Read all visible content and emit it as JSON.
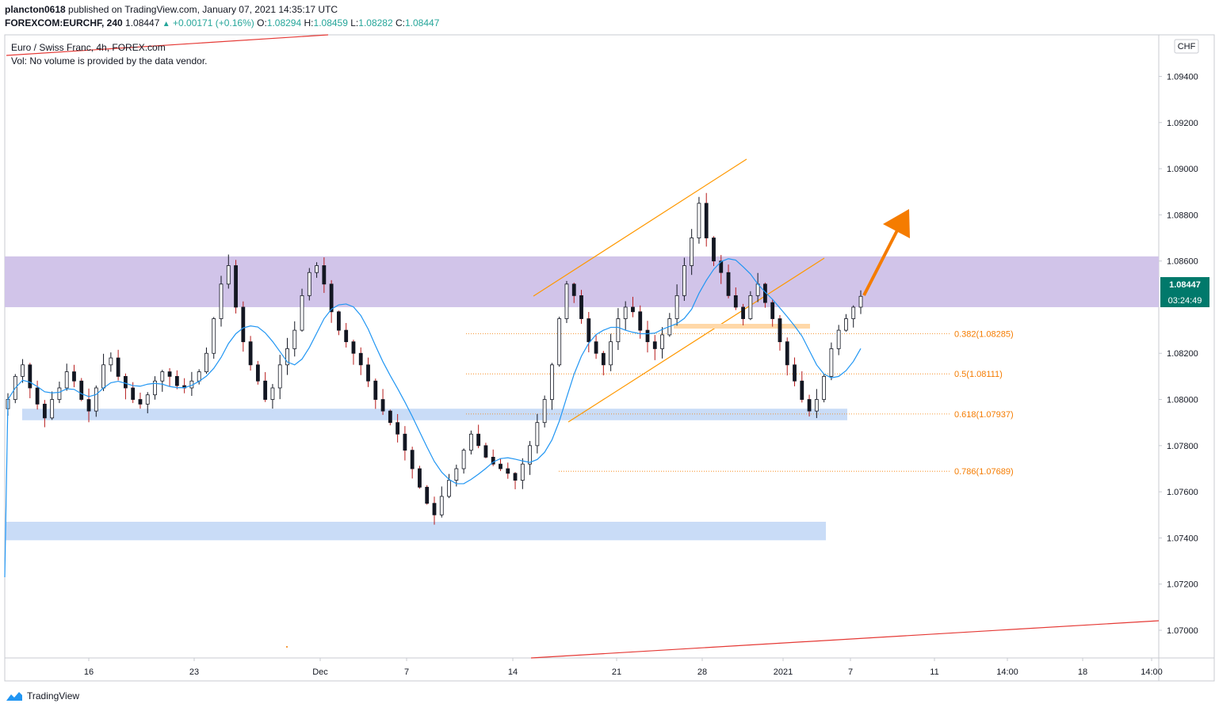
{
  "header": {
    "publisher": "plancton0618",
    "published_text": "published on TradingView.com, January 07, 2021 14:35:17 UTC",
    "symbol": "FOREXCOM:EURCHF, 240",
    "last": "1.08447",
    "change": "+0.00171 (+0.16%)",
    "open_label": "O:",
    "open": "1.08294",
    "high_label": "H:",
    "high": "1.08459",
    "low_label": "L:",
    "low": "1.08282",
    "close_label": "C:",
    "close": "1.08447"
  },
  "legend": {
    "series_title": "Euro / Swiss Franc, 4h, FOREX.com",
    "volume_note": "Vol: No volume is provided by the data vendor."
  },
  "footer": {
    "brand": "TradingView"
  },
  "colors": {
    "up": "#26a69a",
    "down": "#ef5350",
    "candle_up": "#131722",
    "candle_down": "#131722",
    "wick_down": "#b71c1c",
    "resistance_zone": "#d1c4e9",
    "support_zone": "#c9dcf7",
    "fib": "#f57c00",
    "ma": "#2196f3",
    "trendline": "#e53935",
    "channel": "#ff9800",
    "arrow": "#f57c00",
    "price_badge": "#00796b"
  },
  "chart_data": {
    "type": "candlestick",
    "currency_label": "CHF",
    "y_ticks": [
      "1.09400",
      "1.09200",
      "1.09000",
      "1.08800",
      "1.08600",
      "1.08447",
      "1.08200",
      "1.08000",
      "1.07800",
      "1.07600",
      "1.07400",
      "1.07200",
      "1.07000"
    ],
    "ylim": [
      1.0688,
      1.0958
    ],
    "x_ticks": [
      "16",
      "23",
      "Dec",
      "7",
      "14",
      "21",
      "28",
      "2021",
      "7",
      "11",
      "14:00",
      "18",
      "14:00"
    ],
    "last_price": "1.08447",
    "countdown": "03:24:49",
    "resistance_zone": [
      1.084,
      1.0862
    ],
    "support_zones": [
      [
        1.0791,
        1.0796
      ],
      [
        1.0739,
        1.0747
      ]
    ],
    "fib_levels": [
      {
        "ratio": "0.382",
        "value": 1.08285,
        "label": "0.382(1.08285)"
      },
      {
        "ratio": "0.5",
        "value": 1.08111,
        "label": "0.5(1.08111)"
      },
      {
        "ratio": "0.618",
        "value": 1.07937,
        "label": "0.618(1.07937)"
      },
      {
        "ratio": "0.786",
        "value": 1.07689,
        "label": "0.786(1.07689)"
      }
    ],
    "closes": [
      1.08,
      1.081,
      1.0815,
      1.0805,
      1.0798,
      1.0792,
      1.08,
      1.0805,
      1.0812,
      1.0808,
      1.08,
      1.0795,
      1.0805,
      1.0815,
      1.0818,
      1.081,
      1.0805,
      1.08,
      1.0798,
      1.0802,
      1.0808,
      1.0812,
      1.081,
      1.0806,
      1.0805,
      1.0808,
      1.0812,
      1.082,
      1.0835,
      1.085,
      1.0858,
      1.084,
      1.0825,
      1.0815,
      1.0808,
      1.08,
      1.0805,
      1.0815,
      1.0822,
      1.083,
      1.0845,
      1.0855,
      1.0858,
      1.085,
      1.0838,
      1.083,
      1.0825,
      1.082,
      1.0815,
      1.0808,
      1.08,
      1.0795,
      1.079,
      1.0785,
      1.0778,
      1.077,
      1.0762,
      1.0755,
      1.075,
      1.0758,
      1.0765,
      1.077,
      1.0778,
      1.0785,
      1.078,
      1.0775,
      1.0772,
      1.077,
      1.0768,
      1.0765,
      1.0772,
      1.078,
      1.079,
      1.08,
      1.0815,
      1.0835,
      1.085,
      1.0845,
      1.0835,
      1.0825,
      1.082,
      1.0815,
      1.0825,
      1.0835,
      1.084,
      1.0838,
      1.083,
      1.0825,
      1.0822,
      1.0828,
      1.0835,
      1.0845,
      1.0858,
      1.087,
      1.0885,
      1.087,
      1.086,
      1.0855,
      1.0845,
      1.084,
      1.0835,
      1.0845,
      1.085,
      1.0842,
      1.0835,
      1.0825,
      1.0815,
      1.0808,
      1.08,
      1.0795,
      1.08,
      1.081,
      1.0822,
      1.083,
      1.0835,
      1.084,
      1.08447
    ],
    "ma_period_note": ""
  }
}
